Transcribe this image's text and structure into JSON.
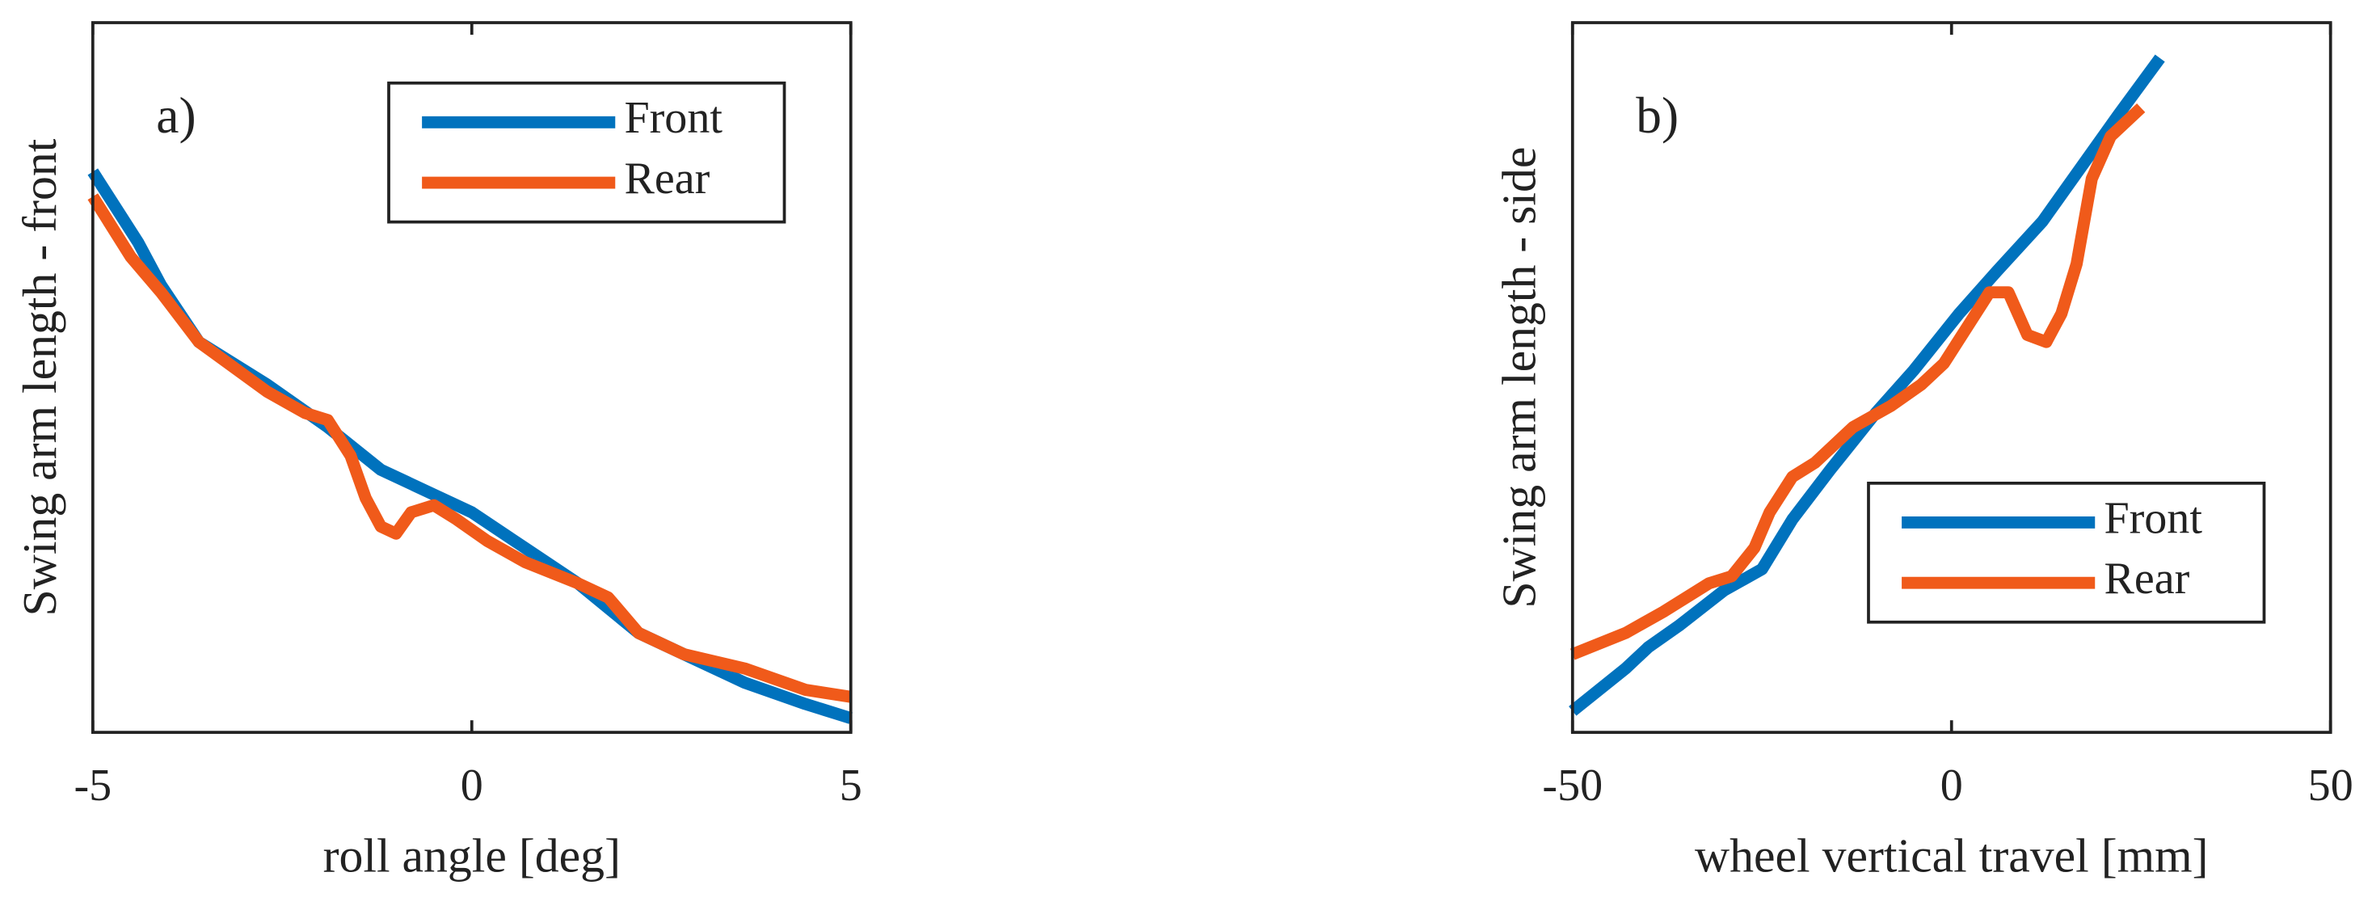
{
  "chart_data": [
    {
      "type": "line",
      "annotation": "a)",
      "xlabel": "roll angle [deg]",
      "ylabel": "Swing arm length - front",
      "xlim": [
        -5,
        5
      ],
      "xticks": [
        -5,
        0,
        5
      ],
      "ylim": [
        0,
        1
      ],
      "legend": "upper right",
      "series": [
        {
          "name": "Front",
          "color": "#0072bd",
          "x": [
            -5,
            -4.4,
            -4.1,
            -3.6,
            -2.7,
            -1.9,
            -1.2,
            -0.6,
            0,
            0.7,
            1.4,
            2.2,
            2.8,
            3.6,
            4.4,
            5
          ],
          "values": [
            0.79,
            0.69,
            0.63,
            0.55,
            0.49,
            0.43,
            0.37,
            0.34,
            0.31,
            0.26,
            0.21,
            0.14,
            0.11,
            0.07,
            0.04,
            0.02
          ]
        },
        {
          "name": "Rear",
          "color": "#f05a1a",
          "x": [
            -5,
            -4.5,
            -4.1,
            -3.6,
            -2.7,
            -2.2,
            -1.9,
            -1.6,
            -1.4,
            -1.2,
            -1.0,
            -0.8,
            -0.5,
            -0.2,
            0.2,
            0.7,
            1.4,
            1.8,
            2.2,
            2.8,
            3.6,
            4.4,
            5
          ],
          "values": [
            0.755,
            0.67,
            0.62,
            0.55,
            0.48,
            0.45,
            0.44,
            0.39,
            0.33,
            0.29,
            0.28,
            0.31,
            0.32,
            0.3,
            0.27,
            0.24,
            0.21,
            0.19,
            0.14,
            0.11,
            0.09,
            0.06,
            0.05
          ]
        }
      ]
    },
    {
      "type": "line",
      "annotation": "b)",
      "xlabel": "wheel vertical travel [mm]",
      "ylabel": "Swing arm length - side",
      "xlim": [
        -50,
        50
      ],
      "xticks": [
        -50,
        0,
        50
      ],
      "ylim": [
        0,
        1
      ],
      "legend": "lower right",
      "series": [
        {
          "name": "Front",
          "color": "#0072bd",
          "x": [
            -50,
            -43,
            -40,
            -36,
            -30,
            -25,
            -21,
            -16,
            -10,
            -5,
            1,
            6,
            12,
            16,
            22,
            27.5
          ],
          "values": [
            0.03,
            0.09,
            0.12,
            0.15,
            0.2,
            0.23,
            0.3,
            0.37,
            0.45,
            0.51,
            0.59,
            0.65,
            0.72,
            0.78,
            0.87,
            0.95
          ]
        },
        {
          "name": "Rear",
          "color": "#f05a1a",
          "x": [
            -50,
            -43,
            -38,
            -32,
            -29,
            -26,
            -24,
            -21,
            -18,
            -13,
            -8,
            -4,
            -1,
            2,
            5,
            7.5,
            10,
            12.5,
            14.5,
            16.5,
            18.5,
            21,
            25
          ],
          "values": [
            0.11,
            0.14,
            0.17,
            0.21,
            0.22,
            0.26,
            0.31,
            0.36,
            0.38,
            0.43,
            0.46,
            0.49,
            0.52,
            0.57,
            0.62,
            0.62,
            0.56,
            0.55,
            0.59,
            0.66,
            0.78,
            0.84,
            0.88
          ]
        }
      ]
    }
  ]
}
